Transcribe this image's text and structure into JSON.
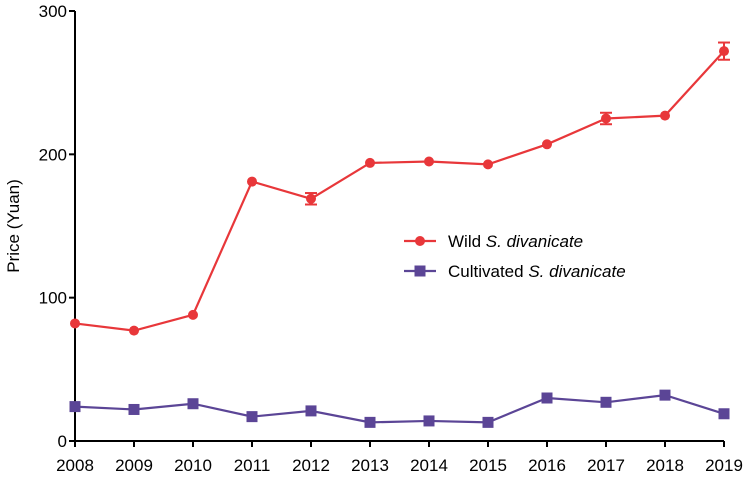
{
  "chart_data": {
    "type": "line",
    "title": "",
    "xlabel": "",
    "ylabel": "Price (Yuan)",
    "ylim": [
      0,
      300
    ],
    "yticks": [
      0,
      100,
      200,
      300
    ],
    "categories": [
      "2008",
      "2009",
      "2010",
      "2011",
      "2012",
      "2013",
      "2014",
      "2015",
      "2016",
      "2017",
      "2018",
      "2019"
    ],
    "series": [
      {
        "name": "Wild S. divanicate",
        "legend_prefix": "Wild ",
        "legend_italic": "S. divanicate",
        "color": "#e8373a",
        "marker": "circle",
        "values": [
          82,
          77,
          88,
          181,
          169,
          194,
          195,
          193,
          207,
          225,
          227,
          272
        ],
        "errors": [
          0,
          0,
          0,
          0,
          4,
          0,
          0,
          0,
          0,
          4,
          0,
          6
        ]
      },
      {
        "name": "Cultivated S. divanicate",
        "legend_prefix": "Cultivated ",
        "legend_italic": "S. divanicate",
        "color": "#5b4596",
        "marker": "square",
        "values": [
          24,
          22,
          26,
          17,
          21,
          13,
          14,
          13,
          30,
          27,
          32,
          19
        ],
        "errors": [
          0,
          0,
          0,
          0,
          0,
          0,
          0,
          0,
          0,
          0,
          0,
          0
        ]
      }
    ],
    "legend_position": "center-right"
  }
}
